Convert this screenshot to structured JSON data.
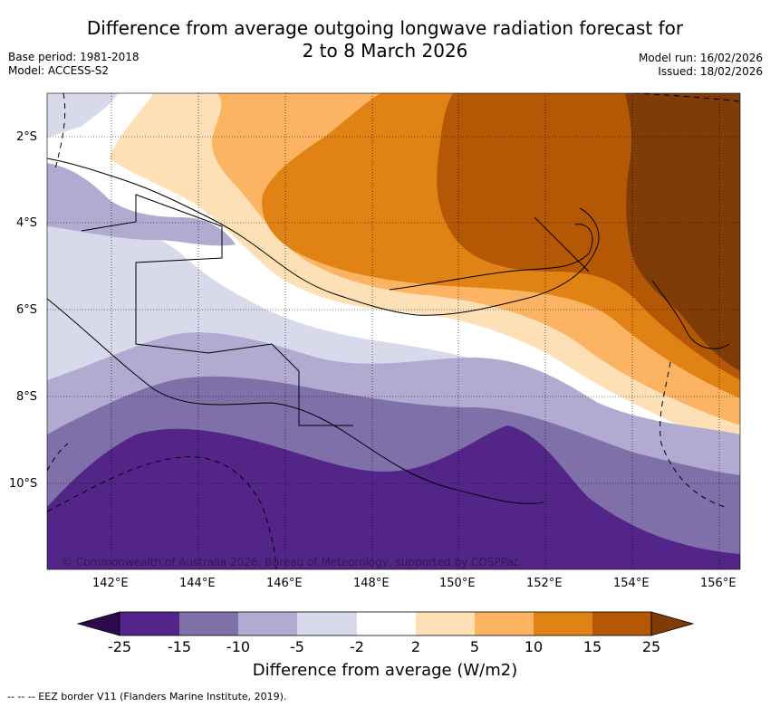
{
  "title": {
    "line1": "Difference from average outgoing longwave radiation forecast for",
    "line2": "2 to 8 March 2026"
  },
  "meta": {
    "base_period": "Base period: 1981-2018",
    "model": "Model: ACCESS-S2",
    "model_run": "Model run: 16/02/2026",
    "issued": "Issued: 18/02/2026"
  },
  "map": {
    "latitudes": [
      "2°S",
      "4°S",
      "6°S",
      "8°S",
      "10°S"
    ],
    "longitudes": [
      "142°E",
      "144°E",
      "146°E",
      "148°E",
      "150°E",
      "152°E",
      "154°E",
      "156°E"
    ],
    "credit": "© Commonwealth of Australia 2026, Bureau of Meteorology, supported by COSPPac"
  },
  "colorbar": {
    "title": "Difference from average (W/m2)",
    "labels": [
      "-25",
      "-15",
      "-10",
      "-5",
      "-2",
      "2",
      "5",
      "10",
      "15",
      "25"
    ],
    "colors": {
      "lt_-25": "#2d0a4e",
      "-25_-15": "#542588",
      "-15_-10": "#7f70aa",
      "-10_-5": "#b1aad1",
      "-5_-2": "#d8d9ea",
      "-2_2": "#ffffff",
      "2_5": "#fee0b6",
      "5_10": "#fcb462",
      "10_15": "#e08214",
      "15_25": "#b45806",
      "gt_25": "#7f3b08"
    }
  },
  "legend": {
    "eez": "--  --  -- EEZ border V11 (Flanders Marine Institute, 2019)."
  }
}
